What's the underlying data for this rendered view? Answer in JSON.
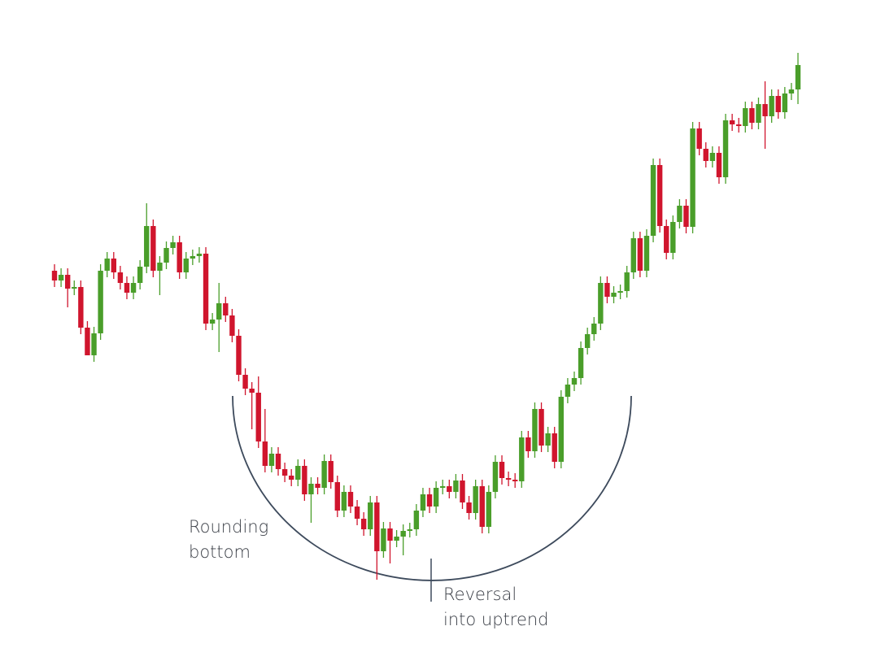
{
  "chart_data": {
    "type": "candlestick",
    "up_color": "#4a9e2a",
    "down_color": "#d0152d",
    "ylim": [
      0,
      81.3
    ],
    "open": [
      48.0,
      46.8,
      47.5,
      45.8,
      46.0,
      41.0,
      37.6,
      40.3,
      48.0,
      49.5,
      47.8,
      46.5,
      45.3,
      46.5,
      48.5,
      53.5,
      48.0,
      49.0,
      50.8,
      51.5,
      47.8,
      49.5,
      49.8,
      50.1,
      41.5,
      42.0,
      44.0,
      42.5,
      40.0,
      35.2,
      33.5,
      33.0,
      27.0,
      24.0,
      25.5,
      23.6,
      22.8,
      22.3,
      24.0,
      20.5,
      21.8,
      21.3,
      24.6,
      22.0,
      18.5,
      20.8,
      19.0,
      17.5,
      16.2,
      19.5,
      13.5,
      16.3,
      14.8,
      15.3,
      16.0,
      16.2,
      18.5,
      20.5,
      19.0,
      21.3,
      21.5,
      20.8,
      22.2,
      19.5,
      18.2,
      21.5,
      16.5,
      20.8,
      24.5,
      22.5,
      22.3,
      22.1,
      27.5,
      25.8,
      31.0,
      26.5,
      28.0,
      24.5,
      32.5,
      34.0,
      34.8,
      38.5,
      40.2,
      41.5,
      46.5,
      44.8,
      45.3,
      45.5,
      47.8,
      52.0,
      48.0,
      52.3,
      61.0,
      53.5,
      50.2,
      54.0,
      56.0,
      53.4,
      65.5,
      63.0,
      61.5,
      62.5,
      59.5,
      66.5,
      66.0,
      65.8,
      68.0,
      66.2,
      68.5,
      67.0,
      69.5,
      67.5,
      69.8,
      70.3
    ],
    "high": [
      48.8,
      48.3,
      48.3,
      46.8,
      46.8,
      41.8,
      41.1,
      48.8,
      50.3,
      50.3,
      48.6,
      47.3,
      47.3,
      49.3,
      56.3,
      54.3,
      49.8,
      51.6,
      52.3,
      52.3,
      50.3,
      50.6,
      50.9,
      50.9,
      42.8,
      46.5,
      44.8,
      43.3,
      40.8,
      36.0,
      34.3,
      35.0,
      31.0,
      26.3,
      26.3,
      24.4,
      23.6,
      24.8,
      24.8,
      22.6,
      22.6,
      25.4,
      25.4,
      22.8,
      21.6,
      21.6,
      19.8,
      18.3,
      20.3,
      20.3,
      17.1,
      17.1,
      16.1,
      16.8,
      17.0,
      19.3,
      21.3,
      21.3,
      22.1,
      22.3,
      22.3,
      23.0,
      23.0,
      20.3,
      22.3,
      22.3,
      21.6,
      25.3,
      25.3,
      23.3,
      23.1,
      28.3,
      28.3,
      31.8,
      31.8,
      28.8,
      28.8,
      33.3,
      34.8,
      35.6,
      39.3,
      41.0,
      42.3,
      47.3,
      47.3,
      46.1,
      46.3,
      48.6,
      52.8,
      52.8,
      53.1,
      61.8,
      61.8,
      54.3,
      54.8,
      56.8,
      56.8,
      66.3,
      66.3,
      63.8,
      63.3,
      63.3,
      67.3,
      67.3,
      66.8,
      68.8,
      68.8,
      69.3,
      71.3,
      70.3,
      70.3,
      70.6,
      71.1,
      74.8
    ],
    "low": [
      46.0,
      46.0,
      43.5,
      45.0,
      40.2,
      37.6,
      36.8,
      39.5,
      47.2,
      47.0,
      45.7,
      44.5,
      44.5,
      45.7,
      47.7,
      47.2,
      45.0,
      48.2,
      50.0,
      47.0,
      47.0,
      48.7,
      49.0,
      40.7,
      40.7,
      38.0,
      41.7,
      39.2,
      34.4,
      32.7,
      28.5,
      26.2,
      23.2,
      23.2,
      22.8,
      22.0,
      21.5,
      21.5,
      19.7,
      17.0,
      20.5,
      20.5,
      21.2,
      17.7,
      17.7,
      18.2,
      16.7,
      15.4,
      15.4,
      10.0,
      12.7,
      12.0,
      14.0,
      13.0,
      15.2,
      15.4,
      17.7,
      18.2,
      18.2,
      20.5,
      20.0,
      20.0,
      18.7,
      17.4,
      17.4,
      15.7,
      15.7,
      20.0,
      21.7,
      21.5,
      21.3,
      21.3,
      25.0,
      25.0,
      25.7,
      25.7,
      23.7,
      23.7,
      31.7,
      33.2,
      34.0,
      37.7,
      39.4,
      40.7,
      44.0,
      44.0,
      44.5,
      44.7,
      47.0,
      47.2,
      47.2,
      51.5,
      52.7,
      49.4,
      49.4,
      53.2,
      52.6,
      52.6,
      62.2,
      60.7,
      60.7,
      58.7,
      58.7,
      65.2,
      65.0,
      65.0,
      65.4,
      65.4,
      63.0,
      66.2,
      66.7,
      66.7,
      69.0,
      68.5
    ],
    "close": [
      46.8,
      47.5,
      45.8,
      46.0,
      41.0,
      37.6,
      40.3,
      48.0,
      49.5,
      47.8,
      46.5,
      45.3,
      46.5,
      48.5,
      53.5,
      48.0,
      49.0,
      50.8,
      51.5,
      47.8,
      49.5,
      49.8,
      50.1,
      41.5,
      42.0,
      44.0,
      42.5,
      40.0,
      35.2,
      33.5,
      33.0,
      27.0,
      24.0,
      25.5,
      23.6,
      22.8,
      22.3,
      24.0,
      20.5,
      21.8,
      21.3,
      24.6,
      22.0,
      18.5,
      20.8,
      19.0,
      17.5,
      16.2,
      19.5,
      13.5,
      16.3,
      14.8,
      15.3,
      16.0,
      16.2,
      18.5,
      20.5,
      19.0,
      21.3,
      21.5,
      20.8,
      22.2,
      19.5,
      18.2,
      21.5,
      16.5,
      20.8,
      24.5,
      22.5,
      22.3,
      22.1,
      27.5,
      25.8,
      31.0,
      26.5,
      28.0,
      24.5,
      32.5,
      34.0,
      34.8,
      38.5,
      40.2,
      41.5,
      46.5,
      44.8,
      45.3,
      45.5,
      47.8,
      52.0,
      48.0,
      52.3,
      61.0,
      53.5,
      50.2,
      54.0,
      56.0,
      53.4,
      65.5,
      63.0,
      61.5,
      62.5,
      59.5,
      66.5,
      66.0,
      65.8,
      68.0,
      66.2,
      68.5,
      67.0,
      69.5,
      67.5,
      69.8,
      70.3,
      73.3
    ],
    "annotations": [
      {
        "lines": [
          "Rounding",
          "bottom"
        ]
      },
      {
        "lines": [
          "Reversal",
          "into uptrend"
        ]
      }
    ]
  }
}
